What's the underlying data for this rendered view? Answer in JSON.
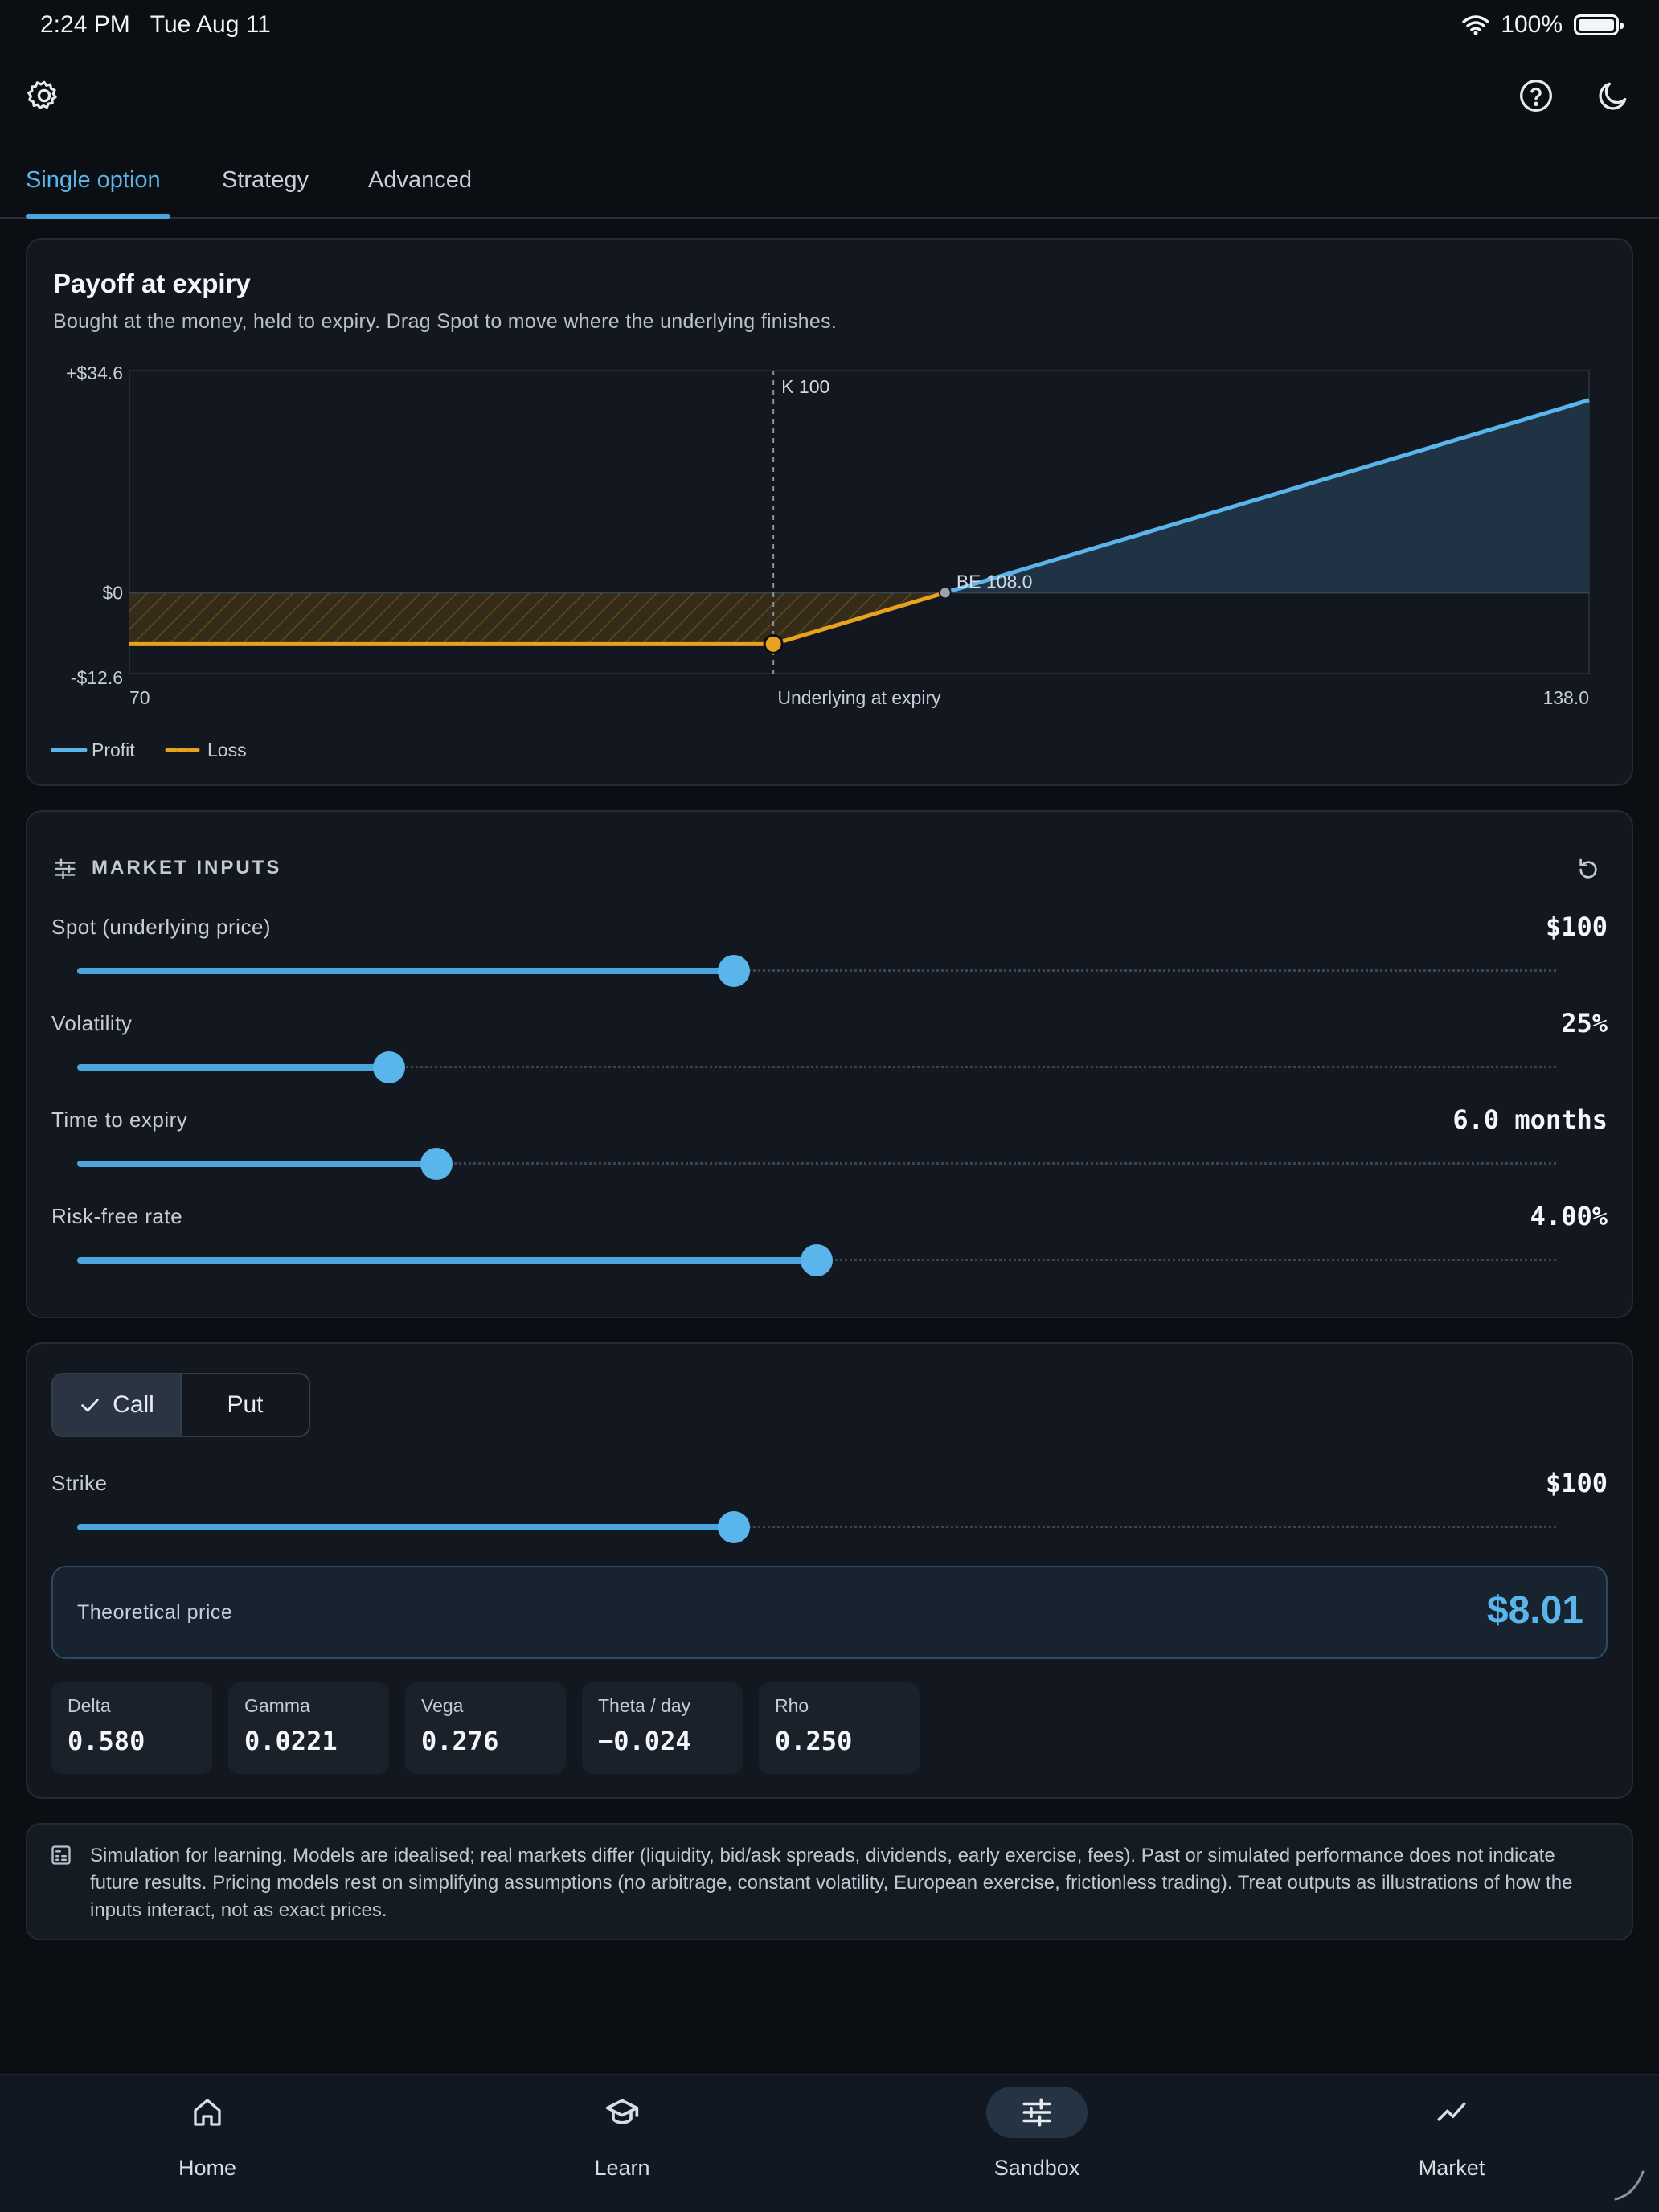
{
  "status_bar": {
    "time": "2:24 PM",
    "date": "Tue Aug 11",
    "battery": "100%"
  },
  "tabs": [
    {
      "label": "Single option",
      "active": true
    },
    {
      "label": "Strategy",
      "active": false
    },
    {
      "label": "Advanced",
      "active": false
    }
  ],
  "payoff": {
    "title": "Payoff at expiry",
    "subtitle": "Bought at the money, held to expiry. Drag Spot to move where the underlying finishes.",
    "strike_label": "K 100",
    "breakeven_label": "BE 108.0",
    "legend": {
      "profit": "Profit",
      "loss": "Loss"
    }
  },
  "chart_data": {
    "type": "line",
    "xlabel": "Underlying at expiry",
    "ylabel": "",
    "xlim": [
      70,
      138.0
    ],
    "ylim": [
      -12.6,
      34.6
    ],
    "x_tick_labels": [
      "70",
      "138.0"
    ],
    "y_tick_labels": [
      "+$34.6",
      "$0",
      "-$12.6"
    ],
    "strike": 100,
    "breakeven": 108.0,
    "spot": 100,
    "premium": 8.01,
    "series": [
      {
        "name": "Loss",
        "color": "#e8a21e",
        "x": [
          70,
          100,
          108.0
        ],
        "y": [
          -8.01,
          -8.01,
          0
        ]
      },
      {
        "name": "Profit",
        "color": "#5ab5ea",
        "x": [
          108.0,
          138.0
        ],
        "y": [
          0,
          30.0
        ]
      }
    ],
    "grid": false,
    "legend_position": "bottom-left"
  },
  "market_inputs": {
    "heading": "MARKET INPUTS",
    "sliders": [
      {
        "label": "Spot (underlying price)",
        "value": "$100",
        "fraction": 0.444
      },
      {
        "label": "Volatility",
        "value": "25%",
        "fraction": 0.211
      },
      {
        "label": "Time to expiry",
        "value": "6.0 months",
        "fraction": 0.243
      },
      {
        "label": "Risk-free rate",
        "value": "4.00%",
        "fraction": 0.5
      }
    ]
  },
  "option": {
    "call_label": "Call",
    "put_label": "Put",
    "selected": "Call",
    "strike_label": "Strike",
    "strike_value": "$100",
    "strike_fraction": 0.444,
    "theo_label": "Theoretical price",
    "theo_value": "$8.01",
    "greeks": [
      {
        "name": "Delta",
        "value": "0.580"
      },
      {
        "name": "Gamma",
        "value": "0.0221"
      },
      {
        "name": "Vega",
        "value": "0.276"
      },
      {
        "name": "Theta / day",
        "value": "−0.024"
      },
      {
        "name": "Rho",
        "value": "0.250"
      }
    ]
  },
  "disclaimer": "Simulation for learning. Models are idealised; real markets differ (liquidity, bid/ask spreads, dividends, early exercise, fees). Past or simulated performance does not indicate future results. Pricing models rest on simplifying assumptions (no arbitrage, constant volatility, European exercise, frictionless trading). Treat outputs as illustrations of how the inputs interact, not as exact prices.",
  "nav": [
    {
      "label": "Home",
      "icon": "home-icon",
      "active": false
    },
    {
      "label": "Learn",
      "icon": "graduation-cap-icon",
      "active": false
    },
    {
      "label": "Sandbox",
      "icon": "sliders-icon",
      "active": true
    },
    {
      "label": "Market",
      "icon": "trending-up-icon",
      "active": false
    }
  ],
  "colors": {
    "accent": "#4aa6de",
    "loss": "#e8a21e",
    "background": "#0b0e13",
    "card": "#131820"
  }
}
